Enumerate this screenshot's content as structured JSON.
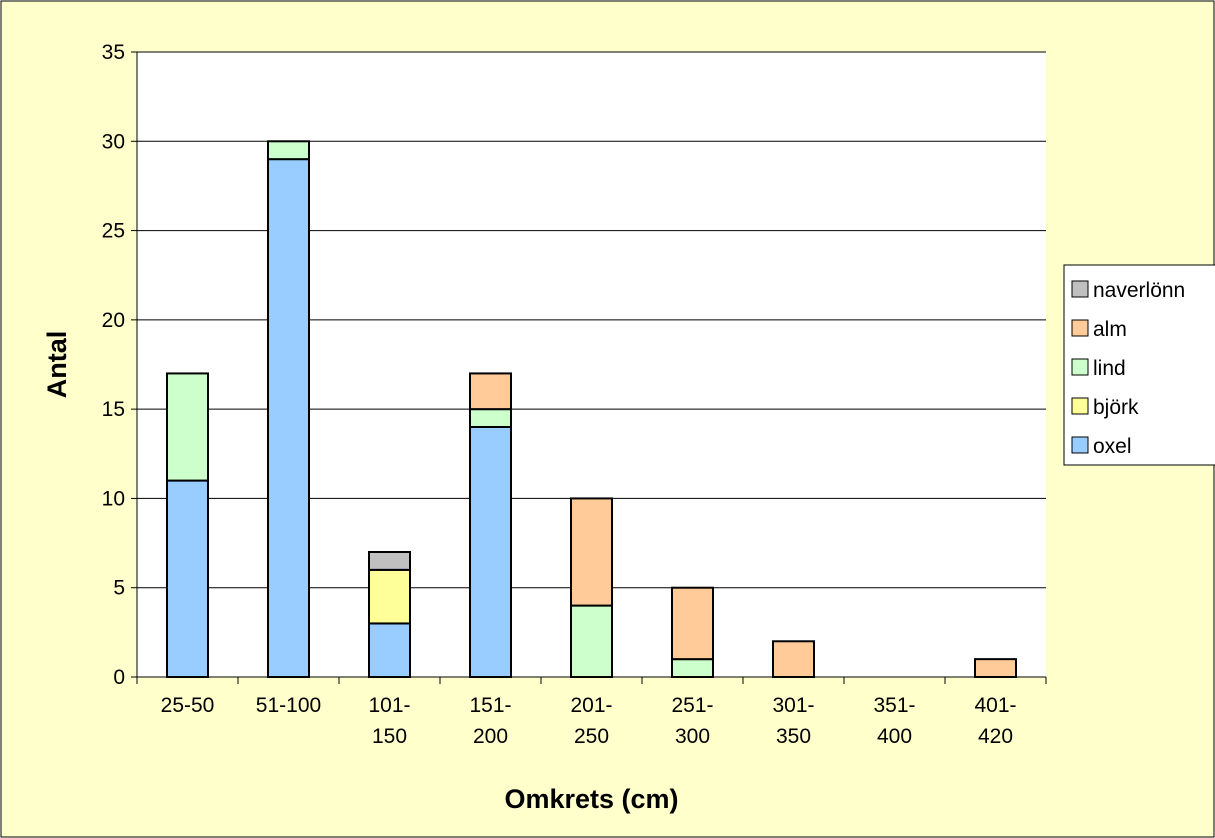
{
  "colors": {
    "chart_background": "#FFFFCC",
    "plot_background": "#FFFFFF",
    "gridline": "#000000",
    "bar_outline": "#000000"
  },
  "chart_data": {
    "type": "bar",
    "stacked": true,
    "categories": [
      [
        "25-50"
      ],
      [
        "51-100"
      ],
      [
        "101-",
        "150"
      ],
      [
        "151-",
        "200"
      ],
      [
        "201-",
        "250"
      ],
      [
        "251-",
        "300"
      ],
      [
        "301-",
        "350"
      ],
      [
        "351-",
        "400"
      ],
      [
        "401-",
        "420"
      ]
    ],
    "series": [
      {
        "name": "oxel",
        "color": "#99CCFF",
        "values": [
          11,
          29,
          3,
          14,
          0,
          0,
          0,
          0,
          0
        ]
      },
      {
        "name": "björk",
        "color": "#FFFF99",
        "values": [
          0,
          0,
          3,
          0,
          0,
          0,
          0,
          0,
          0
        ]
      },
      {
        "name": "lind",
        "color": "#CCFFCC",
        "values": [
          6,
          1,
          0,
          1,
          4,
          1,
          0,
          0,
          0
        ]
      },
      {
        "name": "alm",
        "color": "#FFCC99",
        "values": [
          0,
          0,
          0,
          2,
          6,
          4,
          2,
          0,
          1
        ]
      },
      {
        "name": "naverlönn",
        "color": "#C0C0C0",
        "values": [
          0,
          0,
          1,
          0,
          0,
          0,
          0,
          0,
          0
        ]
      }
    ],
    "legend_order": [
      "naverlönn",
      "alm",
      "lind",
      "björk",
      "oxel"
    ],
    "xlabel": "Omkrets (cm)",
    "ylabel": "Antal",
    "ylim": [
      0,
      35
    ],
    "yticks": [
      0,
      5,
      10,
      15,
      20,
      25,
      30,
      35
    ],
    "grid": true,
    "legend_position": "right"
  }
}
